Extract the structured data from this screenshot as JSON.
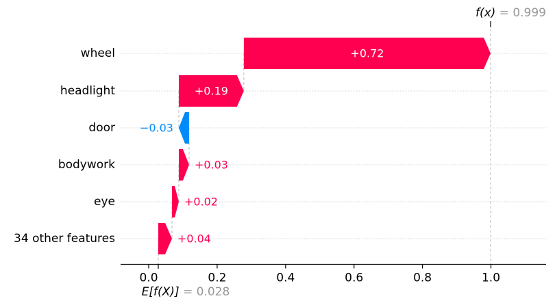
{
  "chart_data": {
    "type": "bar",
    "variant": "shap-waterfall",
    "title": "",
    "xlabel": "",
    "ylabel": "",
    "grid": "dotted-horizontal",
    "legend": null,
    "xlim": [
      -0.083,
      1.162
    ],
    "xticks": {
      "values": [
        0.0,
        0.2,
        0.4,
        0.6,
        0.8,
        1.0
      ],
      "labels": [
        "0.0",
        "0.2",
        "0.4",
        "0.6",
        "0.8",
        "1.0"
      ]
    },
    "fx": {
      "label": "f(x)",
      "equals": " = 0.999",
      "value": 0.999
    },
    "base": {
      "label": "E[f(X)]",
      "equals": " = 0.028",
      "value": 0.028
    },
    "features": [
      {
        "label": "wheel",
        "contribution": 0.72,
        "display": "+0.72",
        "from": 0.278,
        "to": 0.999,
        "sign": "positive",
        "value_label_position": "inside"
      },
      {
        "label": "headlight",
        "contribution": 0.19,
        "display": "+0.19",
        "from": 0.088,
        "to": 0.278,
        "sign": "positive",
        "value_label_position": "inside"
      },
      {
        "label": "door",
        "contribution": -0.03,
        "display": "−0.03",
        "from": 0.118,
        "to": 0.088,
        "sign": "negative",
        "value_label_position": "outside"
      },
      {
        "label": "bodywork",
        "contribution": 0.03,
        "display": "+0.03",
        "from": 0.088,
        "to": 0.118,
        "sign": "positive",
        "value_label_position": "outside"
      },
      {
        "label": "eye",
        "contribution": 0.02,
        "display": "+0.02",
        "from": 0.068,
        "to": 0.088,
        "sign": "positive",
        "value_label_position": "outside"
      },
      {
        "label": "34 other features",
        "contribution": 0.04,
        "display": "+0.04",
        "from": 0.028,
        "to": 0.068,
        "sign": "positive",
        "value_label_position": "outside"
      }
    ],
    "colors": {
      "positive": "#ff0051",
      "negative": "#008bfb",
      "inside_label": "#ffffff",
      "muted_text": "#999999",
      "dashed_line": "#bbbbbb",
      "dotted_grid": "#d4d4d4",
      "axis": "#000000"
    }
  }
}
